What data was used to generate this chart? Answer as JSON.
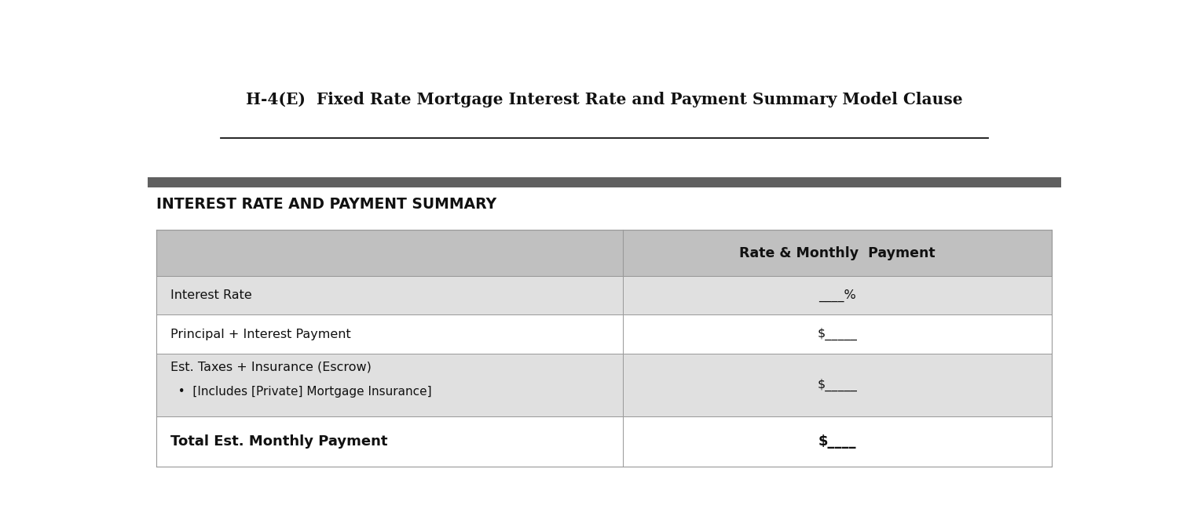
{
  "title": "H-4(E)  Fixed Rate Mortgage Interest Rate and Payment Summary Model Clause",
  "section_header": "INTEREST RATE AND PAYMENT SUMMARY",
  "col_header": "Rate & Monthly  Payment",
  "rows": [
    {
      "label": "Interest Rate",
      "label2": null,
      "value": "____%",
      "bold": false,
      "shaded": true,
      "multiline": false
    },
    {
      "label": "Principal + Interest Payment",
      "label2": null,
      "value": "$_____",
      "bold": false,
      "shaded": false,
      "multiline": false
    },
    {
      "label": "Est. Taxes + Insurance (Escrow)",
      "label2": "  •  [Includes [Private] Mortgage Insurance]",
      "value": "$_____",
      "bold": false,
      "shaded": true,
      "multiline": true
    },
    {
      "label": "Total Est. Monthly Payment",
      "label2": null,
      "value": "$____",
      "bold": true,
      "shaded": false,
      "multiline": false
    }
  ],
  "bg_color": "#ffffff",
  "table_header_bg": "#c0c0c0",
  "row_shaded_bg": "#e0e0e0",
  "row_unshaded_bg": "#ffffff",
  "border_color": "#999999",
  "dark_bar_color": "#606060",
  "col_split": 0.52,
  "title_fontsize": 14.5,
  "header_fontsize": 13.5,
  "row_fontsize": 11.5,
  "col_header_fontsize": 12.5
}
